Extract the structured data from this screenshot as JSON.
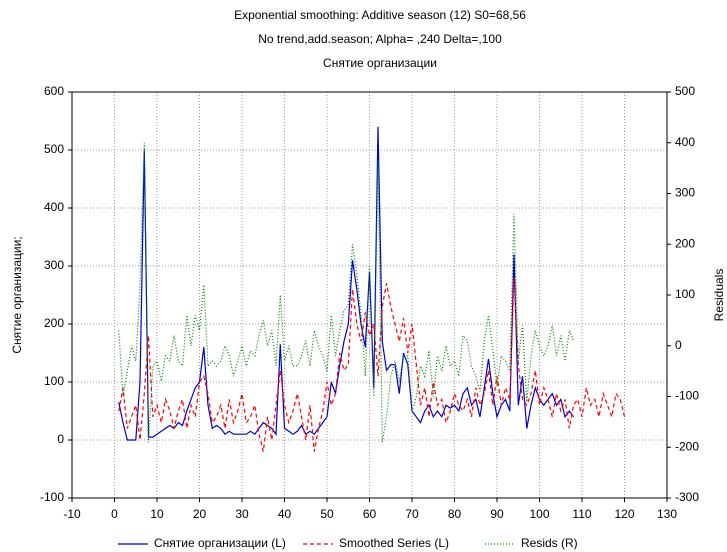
{
  "chart_data": {
    "type": "line",
    "title": "Exponential smoothing: Additive season (12) S0=68,56",
    "subtitle": "No trend,add.season; Alpha= ,240 Delta=,100",
    "subtitle2": "Снятие организации",
    "ylabel": "Снятие организации;",
    "y2label": "Residuals",
    "grid": true,
    "legend": "bottom",
    "x": [
      1,
      2,
      3,
      4,
      5,
      6,
      7,
      8,
      9,
      10,
      11,
      12,
      13,
      14,
      15,
      16,
      17,
      18,
      19,
      20,
      21,
      22,
      23,
      24,
      25,
      26,
      27,
      28,
      29,
      30,
      31,
      32,
      33,
      34,
      35,
      36,
      37,
      38,
      39,
      40,
      41,
      42,
      43,
      44,
      45,
      46,
      47,
      48,
      49,
      50,
      51,
      52,
      53,
      54,
      55,
      56,
      57,
      58,
      59,
      60,
      61,
      62,
      63,
      64,
      65,
      66,
      67,
      68,
      69,
      70,
      71,
      72,
      73,
      74,
      75,
      76,
      77,
      78,
      79,
      80,
      81,
      82,
      83,
      84,
      85,
      86,
      87,
      88,
      89,
      90,
      91,
      92,
      93,
      94,
      95,
      96,
      97,
      98,
      99,
      100,
      101,
      102,
      103,
      104,
      105,
      106,
      107,
      108,
      109,
      110,
      111,
      112,
      113,
      114,
      115,
      116,
      117,
      118,
      119,
      120
    ],
    "xlim": [
      -10,
      130
    ],
    "xticks": [
      -10,
      0,
      10,
      20,
      30,
      40,
      50,
      60,
      70,
      80,
      90,
      100,
      110,
      120,
      130
    ],
    "ylim": [
      -100,
      600
    ],
    "yticks": [
      -100,
      0,
      100,
      200,
      300,
      400,
      500,
      600
    ],
    "y2lim": [
      -300,
      500
    ],
    "y2ticks": [
      -300,
      -200,
      -100,
      0,
      100,
      200,
      300,
      400,
      500
    ],
    "series": [
      {
        "name": "Снятие организации (L)",
        "color": "#0000cc",
        "style": "solid",
        "values": [
          65,
          30,
          0,
          0,
          0,
          100,
          500,
          5,
          5,
          10,
          15,
          20,
          25,
          20,
          30,
          25,
          50,
          70,
          90,
          100,
          160,
          60,
          20,
          25,
          20,
          10,
          15,
          10,
          10,
          10,
          10,
          15,
          10,
          20,
          30,
          25,
          20,
          10,
          165,
          20,
          15,
          10,
          15,
          25,
          10,
          15,
          10,
          20,
          30,
          40,
          100,
          80,
          130,
          170,
          200,
          310,
          260,
          200,
          160,
          290,
          90,
          540,
          170,
          120,
          130,
          130,
          80,
          150,
          130,
          50,
          40,
          30,
          50,
          60,
          40,
          50,
          40,
          60,
          55,
          60,
          50,
          80,
          90,
          60,
          70,
          40,
          90,
          140,
          80,
          40,
          60,
          70,
          50,
          320,
          60,
          110,
          20,
          60,
          90,
          70,
          60,
          70,
          80,
          60,
          70,
          40,
          50,
          40,
          null,
          null,
          null,
          null,
          null,
          null,
          null,
          null,
          null,
          null,
          null,
          null
        ]
      },
      {
        "name": "Smoothed Series (L)",
        "color": "#ff0000",
        "style": "dashed",
        "values": [
          50,
          90,
          20,
          40,
          60,
          0,
          80,
          180,
          40,
          60,
          30,
          70,
          50,
          20,
          50,
          70,
          20,
          60,
          40,
          100,
          110,
          80,
          30,
          40,
          60,
          20,
          70,
          30,
          50,
          80,
          30,
          40,
          60,
          10,
          -20,
          40,
          0,
          60,
          120,
          60,
          30,
          50,
          80,
          40,
          0,
          60,
          -20,
          20,
          50,
          100,
          60,
          80,
          150,
          120,
          130,
          260,
          200,
          170,
          220,
          180,
          200,
          110,
          230,
          270,
          230,
          200,
          170,
          210,
          150,
          200,
          130,
          60,
          90,
          40,
          100,
          60,
          70,
          30,
          50,
          80,
          60,
          50,
          70,
          40,
          90,
          60,
          80,
          120,
          60,
          110,
          60,
          90,
          70,
          280,
          130,
          70,
          60,
          80,
          120,
          60,
          90,
          70,
          40,
          80,
          50,
          70,
          20,
          60,
          70,
          40,
          90,
          60,
          70,
          40,
          80,
          60,
          40,
          80,
          70,
          40
        ]
      },
      {
        "name": "Resids (R)",
        "color": "#008000",
        "style": "dotted",
        "axis": "y2",
        "values": [
          30,
          -100,
          -50,
          0,
          -30,
          120,
          400,
          -190,
          -40,
          -30,
          -70,
          -20,
          -30,
          20,
          -30,
          -40,
          60,
          0,
          60,
          30,
          120,
          -40,
          -30,
          -40,
          -30,
          0,
          -20,
          -60,
          -30,
          0,
          -40,
          -10,
          -20,
          20,
          50,
          0,
          30,
          -40,
          100,
          -30,
          0,
          -40,
          -40,
          -20,
          10,
          -40,
          30,
          0,
          -20,
          -50,
          60,
          -20,
          30,
          70,
          80,
          200,
          140,
          60,
          -60,
          160,
          -100,
          370,
          -190,
          -140,
          -60,
          -30,
          -70,
          -20,
          -20,
          -130,
          -100,
          -40,
          -60,
          -10,
          -100,
          -20,
          -50,
          0,
          -40,
          -30,
          -60,
          20,
          10,
          -40,
          -60,
          -90,
          10,
          60,
          -10,
          -80,
          -20,
          -30,
          -50,
          260,
          -30,
          40,
          -110,
          -20,
          30,
          0,
          -20,
          0,
          40,
          -20,
          20,
          -30,
          30,
          10,
          null,
          null,
          null,
          null,
          null,
          null,
          null,
          null,
          null,
          null,
          null,
          null
        ]
      }
    ]
  }
}
